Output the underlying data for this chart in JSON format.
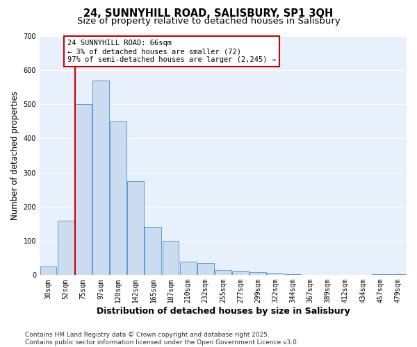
{
  "title_line1": "24, SUNNYHILL ROAD, SALISBURY, SP1 3QH",
  "title_line2": "Size of property relative to detached houses in Salisbury",
  "xlabel": "Distribution of detached houses by size in Salisbury",
  "ylabel": "Number of detached properties",
  "categories": [
    "30sqm",
    "52sqm",
    "75sqm",
    "97sqm",
    "120sqm",
    "142sqm",
    "165sqm",
    "187sqm",
    "210sqm",
    "232sqm",
    "255sqm",
    "277sqm",
    "299sqm",
    "322sqm",
    "344sqm",
    "367sqm",
    "389sqm",
    "412sqm",
    "434sqm",
    "457sqm",
    "479sqm"
  ],
  "values": [
    25,
    160,
    500,
    570,
    450,
    275,
    140,
    100,
    40,
    35,
    15,
    10,
    8,
    5,
    2,
    1,
    1,
    0,
    0,
    3,
    2
  ],
  "bar_color": "#ccdcf0",
  "bar_edge_color": "#5b9bd5",
  "red_line_bar_index": 2,
  "highlight_color": "#cc0000",
  "annotation_text": "24 SUNNYHILL ROAD: 66sqm\n← 3% of detached houses are smaller (72)\n97% of semi-detached houses are larger (2,245) →",
  "annotation_box_color": "#cc0000",
  "ylim": [
    0,
    700
  ],
  "yticks": [
    0,
    100,
    200,
    300,
    400,
    500,
    600,
    700
  ],
  "footer_line1": "Contains HM Land Registry data © Crown copyright and database right 2025.",
  "footer_line2": "Contains public sector information licensed under the Open Government Licence v3.0.",
  "bg_color": "#ffffff",
  "plot_bg_color": "#e8f0fc",
  "grid_color": "#ffffff",
  "title_fontsize": 10.5,
  "subtitle_fontsize": 9.5,
  "ylabel_fontsize": 8.5,
  "xlabel_fontsize": 9,
  "tick_fontsize": 7,
  "annotation_fontsize": 7.5,
  "footer_fontsize": 6.5
}
